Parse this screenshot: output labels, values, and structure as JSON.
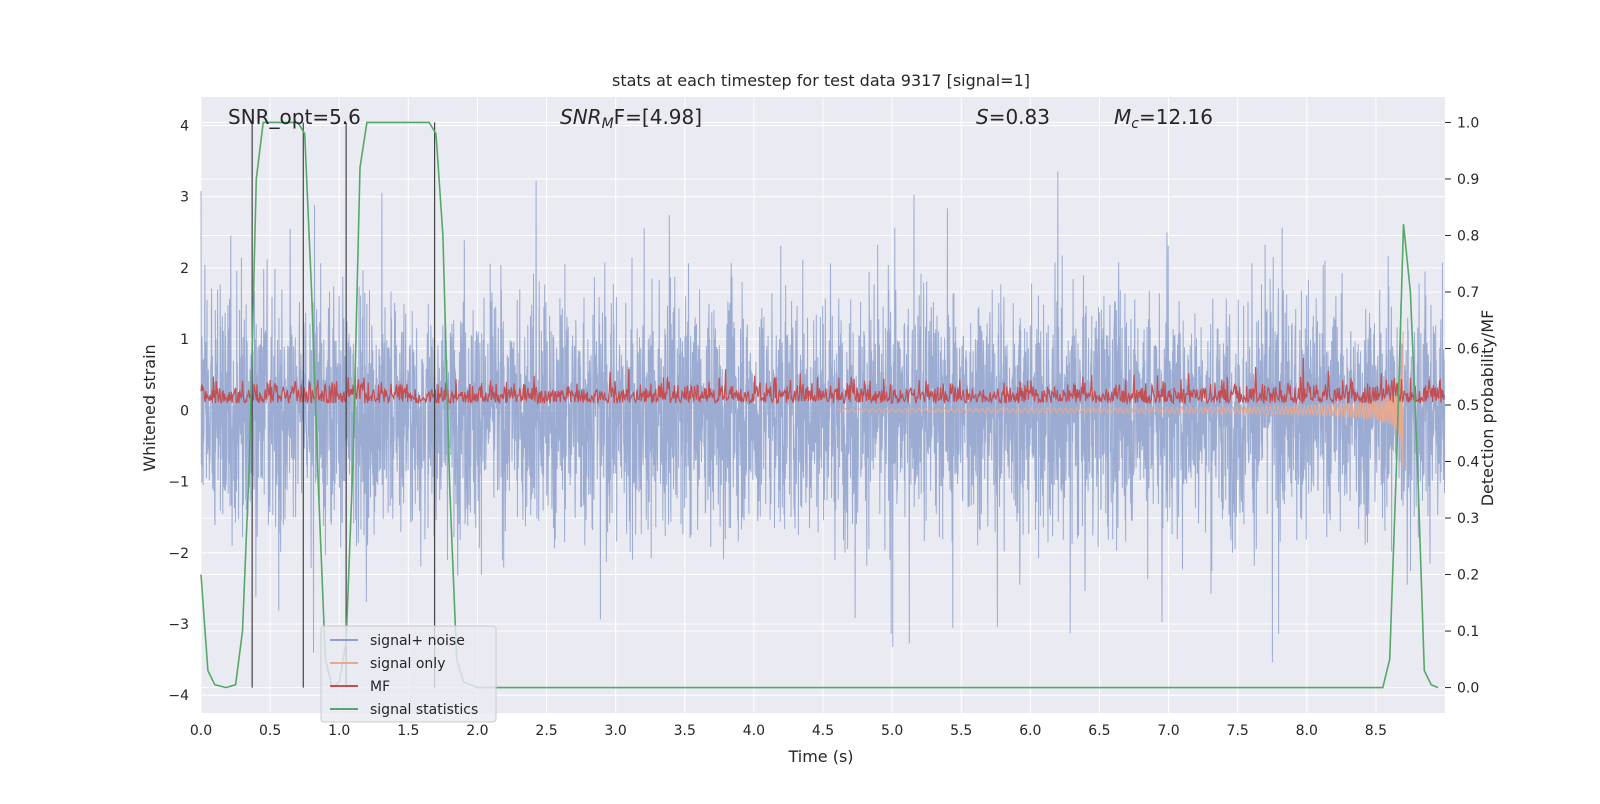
{
  "chart_data": {
    "type": "line",
    "title": "stats at each timestep for test data 9317 [signal=1]",
    "xlabel": "Time (s)",
    "ylabel_left": "Whitened strain",
    "ylabel_right": "Detection probability/MF",
    "xlim": [
      0,
      9.0
    ],
    "ylim_left": [
      -4.25,
      4.4
    ],
    "ylim_right": [
      -0.045,
      1.045
    ],
    "xticks": [
      0.0,
      0.5,
      1.0,
      1.5,
      2.0,
      2.5,
      3.0,
      3.5,
      4.0,
      4.5,
      5.0,
      5.5,
      6.0,
      6.5,
      7.0,
      7.5,
      8.0,
      8.5
    ],
    "xtick_labels": [
      "0.0",
      "0.5",
      "1.0",
      "1.5",
      "2.0",
      "2.5",
      "3.0",
      "3.5",
      "4.0",
      "4.5",
      "5.0",
      "5.5",
      "6.0",
      "6.5",
      "7.0",
      "7.5",
      "8.0",
      "8.5"
    ],
    "yticks_left": [
      -4,
      -3,
      -2,
      -1,
      0,
      1,
      2,
      3,
      4
    ],
    "ytick_labels_left": [
      "−4",
      "−3",
      "−2",
      "−1",
      "0",
      "1",
      "2",
      "3",
      "4"
    ],
    "yticks_right": [
      0.0,
      0.1,
      0.2,
      0.3,
      0.4,
      0.5,
      0.6,
      0.7,
      0.8,
      0.9,
      1.0
    ],
    "ytick_labels_right": [
      "0.0",
      "0.1",
      "0.2",
      "0.3",
      "0.4",
      "0.5",
      "0.6",
      "0.7",
      "0.8",
      "0.9",
      "1.0"
    ],
    "grid": true,
    "legend_position": "lower-left",
    "annotations": {
      "snr_opt": "SNR_opt=5.6",
      "snr_mf_base": "SNR",
      "snr_mf_sub": "M",
      "snr_mf_rest": "F=[4.98]",
      "s_base": "S",
      "s_value": "=0.83",
      "mc_base": "M",
      "mc_sub": "c",
      "mc_value": "=12.16"
    },
    "series": [
      {
        "name": "signal+ noise",
        "axis": "left",
        "color": "#8da0cb",
        "description": "noisy whitened strain, roughly -3.5 to 4 range"
      },
      {
        "name": "signal only",
        "axis": "left",
        "color": "#e8a990",
        "description": "chirp signal growing toward merger near t=8.7s",
        "merger_time": 8.7
      },
      {
        "name": "MF",
        "axis": "right",
        "color": "#c44e52",
        "description": "matched filter output, roughly 0.5 to 0.58"
      },
      {
        "name": "signal statistics",
        "axis": "right",
        "color": "#55a868",
        "x": [
          0.0,
          0.05,
          0.1,
          0.18,
          0.25,
          0.3,
          0.35,
          0.4,
          0.45,
          0.5,
          0.55,
          0.6,
          0.65,
          0.7,
          0.75,
          0.8,
          0.85,
          0.9,
          0.95,
          1.0,
          1.05,
          1.1,
          1.15,
          1.2,
          1.25,
          1.3,
          1.4,
          1.5,
          1.6,
          1.65,
          1.7,
          1.75,
          1.8,
          1.85,
          1.9,
          2.0,
          2.5,
          3.0,
          4.0,
          5.0,
          6.0,
          7.0,
          8.0,
          8.4,
          8.55,
          8.6,
          8.65,
          8.7,
          8.75,
          8.8,
          8.85,
          8.9,
          8.95
        ],
        "values": [
          0.2,
          0.03,
          0.005,
          0.0,
          0.005,
          0.1,
          0.4,
          0.9,
          1.0,
          1.0,
          1.0,
          1.0,
          1.0,
          1.0,
          0.98,
          0.7,
          0.35,
          0.05,
          0.0,
          0.01,
          0.08,
          0.4,
          0.92,
          1.0,
          1.0,
          1.0,
          1.0,
          1.0,
          1.0,
          1.0,
          0.98,
          0.8,
          0.35,
          0.05,
          0.01,
          0.0,
          0.0,
          0.0,
          0.0,
          0.0,
          0.0,
          0.0,
          0.0,
          0.0,
          0.0,
          0.05,
          0.4,
          0.82,
          0.7,
          0.4,
          0.03,
          0.005,
          0.0
        ]
      }
    ],
    "vertical_markers": [
      {
        "x": 0.37,
        "y_top": 1.0,
        "y_bottom": 0.0
      },
      {
        "x": 0.74,
        "y_top": 1.0,
        "y_bottom": 0.0
      },
      {
        "x": 1.05,
        "y_top": 1.0,
        "y_bottom": 0.0
      },
      {
        "x": 1.69,
        "y_top": 1.0,
        "y_bottom": 0.0
      }
    ]
  }
}
